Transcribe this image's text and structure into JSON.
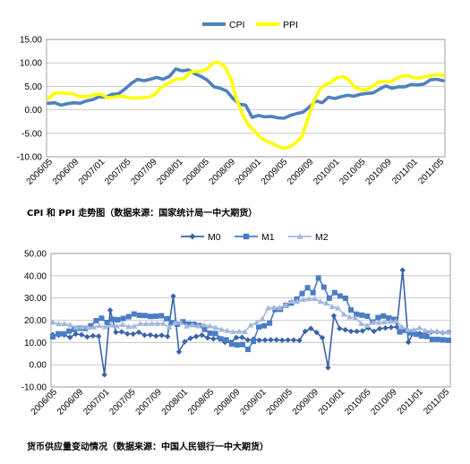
{
  "captions": {
    "chart1": "CPI 和 PPI 走势图（数据来源：国家统计局一中大期货）",
    "chart2": "货币供应量变动情况（数据来源：中国人民银行一中大期货）"
  },
  "chart_data": [
    {
      "type": "line",
      "title": "",
      "xlabel": "",
      "ylabel": "",
      "ylim": [
        -10,
        15
      ],
      "yticks": [
        "15.00",
        "10.00",
        "5.00",
        "0.00",
        "-5.00",
        "-10.00"
      ],
      "xtick_labels": [
        "2006/05",
        "2006/09",
        "2007/01",
        "2007/05",
        "2007/09",
        "2008/01",
        "2008/05",
        "2008/09",
        "2009/01",
        "2009/05",
        "2009/09",
        "2010/01",
        "2010/05",
        "2010/09",
        "2011/01",
        "2011/05"
      ],
      "legend_position": "top-center",
      "grid": true,
      "series": [
        {
          "name": "CPI",
          "color": "#4f81bd",
          "values": [
            1.4,
            1.5,
            1.0,
            1.3,
            1.5,
            1.4,
            1.9,
            2.2,
            2.8,
            2.7,
            3.3,
            3.4,
            4.4,
            5.6,
            6.5,
            6.2,
            6.5,
            6.9,
            6.5,
            7.1,
            8.7,
            8.3,
            8.5,
            7.7,
            7.1,
            6.3,
            4.9,
            4.6,
            4.0,
            2.4,
            1.2,
            1.0,
            -1.6,
            -1.2,
            -1.5,
            -1.4,
            -1.7,
            -1.8,
            -1.2,
            -0.8,
            -0.5,
            0.6,
            1.9,
            1.5,
            2.7,
            2.4,
            2.8,
            3.1,
            2.9,
            3.3,
            3.5,
            3.6,
            4.4,
            5.1,
            4.6,
            4.9,
            4.9,
            5.4,
            5.3,
            5.5,
            6.4,
            6.5,
            6.2
          ]
        },
        {
          "name": "PPI",
          "color": "#ffff00",
          "values": [
            2.4,
            3.5,
            3.6,
            3.5,
            3.5,
            2.9,
            2.8,
            2.9,
            3.3,
            3.3,
            2.6,
            2.7,
            2.9,
            2.8,
            2.5,
            2.5,
            2.6,
            2.7,
            3.2,
            4.6,
            5.4,
            6.1,
            6.6,
            6.6,
            8.0,
            8.2,
            8.2,
            8.8,
            10.0,
            10.1,
            9.1,
            6.6,
            2.0,
            -1.1,
            -3.3,
            -4.5,
            -6.0,
            -6.6,
            -7.2,
            -7.8,
            -8.2,
            -7.9,
            -7.0,
            -5.8,
            -2.1,
            1.7,
            4.3,
            5.4,
            5.9,
            6.8,
            7.1,
            6.4,
            4.8,
            4.3,
            4.3,
            5.0,
            5.9,
            6.1,
            5.9,
            6.6,
            7.2,
            7.3,
            6.8,
            6.8,
            7.1,
            7.3,
            7.5,
            7.3
          ]
        }
      ]
    },
    {
      "type": "line",
      "title": "",
      "xlabel": "",
      "ylabel": "",
      "ylim": [
        -10,
        50
      ],
      "yticks": [
        "50.00",
        "40.00",
        "30.00",
        "20.00",
        "10.00",
        "0.00",
        "-10.00"
      ],
      "xtick_labels": [
        "2006/05",
        "2006/09",
        "2007/01",
        "2007/05",
        "2007/09",
        "2008/01",
        "2008/05",
        "2008/09",
        "2009/01",
        "2009/05",
        "2009/09",
        "2010/01",
        "2010/05",
        "2010/09",
        "2011/01",
        "2011/05"
      ],
      "legend_position": "top-center",
      "grid": true,
      "series": [
        {
          "name": "M0",
          "color": "#3a64a8",
          "marker": "diamond",
          "values": [
            13.5,
            13.3,
            13.4,
            12.3,
            13.8,
            13.5,
            12.5,
            13.0,
            12.8,
            -4.5,
            24.5,
            14.6,
            14.8,
            13.9,
            13.8,
            14.6,
            13.3,
            13.4,
            12.9,
            13.2,
            12.7,
            30.8,
            5.8,
            10.3,
            11.9,
            12.7,
            13.3,
            12.1,
            11.6,
            12.0,
            10.1,
            10.1,
            12.2,
            12.3,
            11.1,
            11.5,
            11.0,
            11.1,
            11.2,
            11.2,
            11.0,
            11.1,
            11.1,
            10.9,
            15.0,
            16.3,
            14.5,
            12.1,
            -1.3,
            22.0,
            16.3,
            15.7,
            15.0,
            15.0,
            15.2,
            16.5,
            15.0,
            16.2,
            16.5,
            16.8,
            17.0,
            42.5,
            10.1,
            15.0,
            14.0,
            14.5,
            14.7,
            14.8,
            14.4,
            14.7
          ]
        },
        {
          "name": "M1",
          "color": "#4a7cc7",
          "marker": "square",
          "values": [
            12.5,
            13.9,
            13.9,
            15.1,
            15.8,
            16.4,
            16.3,
            17.5,
            19.8,
            20.9,
            19.0,
            20.4,
            20.2,
            20.8,
            21.6,
            22.8,
            22.2,
            22.1,
            21.7,
            21.8,
            22.0,
            20.7,
            18.9,
            18.2,
            19.3,
            18.3,
            18.2,
            17.6,
            15.9,
            14.2,
            14.0,
            11.6,
            11.2,
            9.3,
            8.9,
            9.1,
            6.9,
            10.5,
            17.0,
            17.5,
            18.7,
            24.8,
            24.9,
            26.7,
            27.7,
            29.5,
            32.0,
            34.6,
            32.4,
            39.0,
            34.9,
            29.9,
            32.4,
            30.9,
            29.9,
            24.6,
            22.7,
            22.3,
            21.8,
            19.2,
            21.2,
            21.9,
            21.0,
            20.4,
            14.7,
            15.4,
            14.3,
            13.7,
            12.9,
            12.7,
            11.4,
            11.4,
            11.2,
            11.0
          ]
        },
        {
          "name": "M2",
          "color": "#a3b7dc",
          "marker": "triangle",
          "values": [
            19.1,
            18.4,
            18.4,
            17.9,
            16.8,
            16.9,
            16.8,
            16.9,
            17.5,
            17.0,
            17.8,
            17.3,
            18.1,
            17.1,
            17.3,
            18.5,
            18.4,
            18.5,
            18.5,
            18.5,
            16.7,
            18.9,
            18.9,
            17.3,
            17.9,
            17.4,
            17.9,
            17.4,
            16.7,
            15.8,
            15.3,
            14.8,
            15.0,
            14.8,
            17.8,
            18.9,
            20.5,
            25.5,
            25.7,
            25.7,
            26.7,
            28.5,
            28.4,
            29.3,
            29.6,
            29.7,
            28.4,
            27.7,
            26.1,
            25.5,
            22.7,
            21.5,
            21.0,
            18.5,
            17.6,
            19.0,
            19.0,
            19.2,
            19.5,
            19.7,
            17.0,
            15.7,
            15.7,
            16.6,
            15.3,
            15.1,
            15.1,
            14.7,
            14.6
          ]
        }
      ]
    }
  ]
}
